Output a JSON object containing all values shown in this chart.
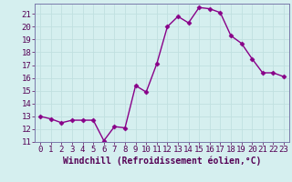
{
  "x": [
    0,
    1,
    2,
    3,
    4,
    5,
    6,
    7,
    8,
    9,
    10,
    11,
    12,
    13,
    14,
    15,
    16,
    17,
    18,
    19,
    20,
    21,
    22,
    23
  ],
  "y": [
    13.0,
    12.8,
    12.5,
    12.7,
    12.7,
    12.7,
    11.1,
    12.2,
    12.1,
    15.4,
    14.9,
    17.1,
    20.0,
    20.8,
    20.3,
    21.5,
    21.4,
    21.1,
    19.3,
    18.7,
    17.5,
    16.4,
    16.4,
    16.1
  ],
  "line_color": "#880088",
  "marker": "D",
  "marker_size": 2.5,
  "bg_color": "#d5efef",
  "grid_color": "#bbdddd",
  "xlabel": "Windchill (Refroidissement éolien,°C)",
  "ylim": [
    11,
    21.8
  ],
  "xlim": [
    -0.5,
    23.5
  ],
  "yticks": [
    11,
    12,
    13,
    14,
    15,
    16,
    17,
    18,
    19,
    20,
    21
  ],
  "xticks": [
    0,
    1,
    2,
    3,
    4,
    5,
    6,
    7,
    8,
    9,
    10,
    11,
    12,
    13,
    14,
    15,
    16,
    17,
    18,
    19,
    20,
    21,
    22,
    23
  ],
  "xlabel_fontsize": 7,
  "tick_fontsize": 6.5,
  "line_width": 1.0,
  "spine_color": "#7a7aaa"
}
